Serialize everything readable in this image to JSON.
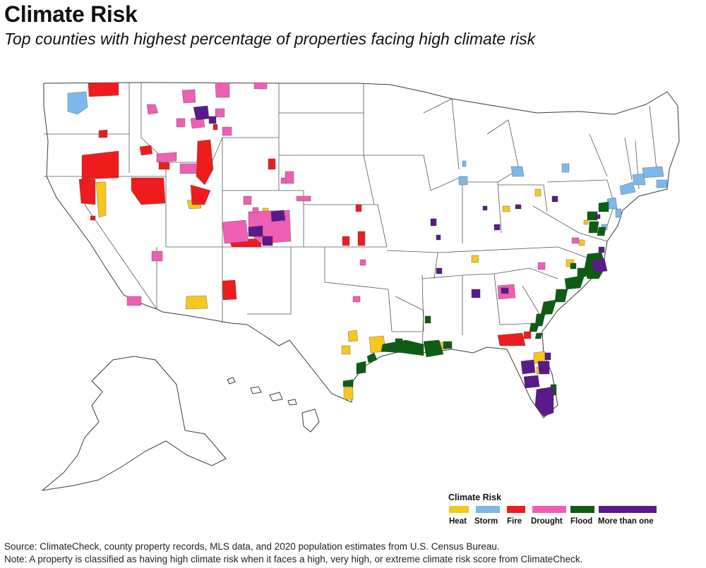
{
  "title": "Climate Risk",
  "subtitle": "Top counties with highest percentage of properties facing high climate risk",
  "legend": {
    "title": "Climate Risk",
    "items": [
      {
        "label": "Heat",
        "color": "#f6c81e"
      },
      {
        "label": "Storm",
        "color": "#7cb9ea"
      },
      {
        "label": "Fire",
        "color": "#ee1c1c"
      },
      {
        "label": "Drought",
        "color": "#ee5fb4"
      },
      {
        "label": "Flood",
        "color": "#0d5e12"
      },
      {
        "label": "More than one",
        "color": "#5b1a8a"
      }
    ]
  },
  "source_note": "Source: ClimateCheck, county property records, MLS data, and 2020 population estimates from U.S. Census Bureau.",
  "classification_note": "Note: A property is classified as having high climate risk when it faces a high, very high, or extreme climate risk score from ClimateCheck."
}
